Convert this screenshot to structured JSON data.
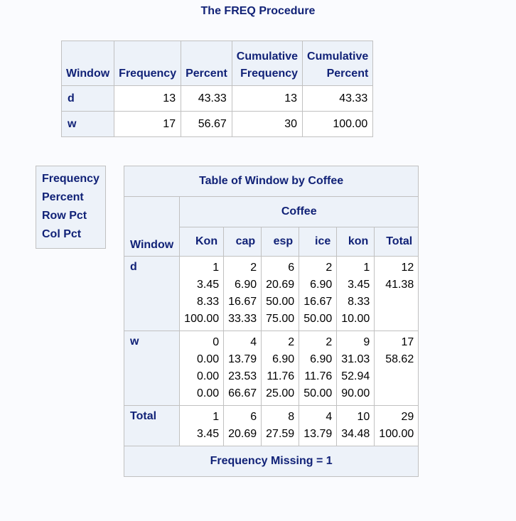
{
  "title": "The FREQ Procedure",
  "freq_table": {
    "headers": {
      "window": "Window",
      "frequency": "Frequency",
      "percent": "Percent",
      "cum_freq_1": "Cumulative",
      "cum_freq_2": "Frequency",
      "cum_pct_1": "Cumulative",
      "cum_pct_2": "Percent"
    },
    "rows": [
      {
        "window": "d",
        "frequency": "13",
        "percent": "43.33",
        "cum_freq": "13",
        "cum_pct": "43.33"
      },
      {
        "window": "w",
        "frequency": "17",
        "percent": "56.67",
        "cum_freq": "30",
        "cum_pct": "100.00"
      }
    ]
  },
  "legend": [
    "Frequency",
    "Percent",
    "Row Pct",
    "Col Pct"
  ],
  "cross_table": {
    "title": "Table of Window by Coffee",
    "col_var": "Coffee",
    "row_var": "Window",
    "columns": [
      "Kon",
      "cap",
      "esp",
      "ice",
      "kon",
      "Total"
    ],
    "rows": [
      {
        "label": "d",
        "cells": [
          [
            "1",
            "3.45",
            "8.33",
            "100.00"
          ],
          [
            "2",
            "6.90",
            "16.67",
            "33.33"
          ],
          [
            "6",
            "20.69",
            "50.00",
            "75.00"
          ],
          [
            "2",
            "6.90",
            "16.67",
            "50.00"
          ],
          [
            "1",
            "3.45",
            "8.33",
            "10.00"
          ],
          [
            "12",
            "41.38"
          ]
        ]
      },
      {
        "label": "w",
        "cells": [
          [
            "0",
            "0.00",
            "0.00",
            "0.00"
          ],
          [
            "4",
            "13.79",
            "23.53",
            "66.67"
          ],
          [
            "2",
            "6.90",
            "11.76",
            "25.00"
          ],
          [
            "2",
            "6.90",
            "11.76",
            "50.00"
          ],
          [
            "9",
            "31.03",
            "52.94",
            "90.00"
          ],
          [
            "17",
            "58.62"
          ]
        ]
      },
      {
        "label": "Total",
        "cells": [
          [
            "1",
            "3.45"
          ],
          [
            "6",
            "20.69"
          ],
          [
            "8",
            "27.59"
          ],
          [
            "4",
            "13.79"
          ],
          [
            "10",
            "34.48"
          ],
          [
            "29",
            "100.00"
          ]
        ]
      }
    ],
    "footer": "Frequency Missing = 1"
  }
}
